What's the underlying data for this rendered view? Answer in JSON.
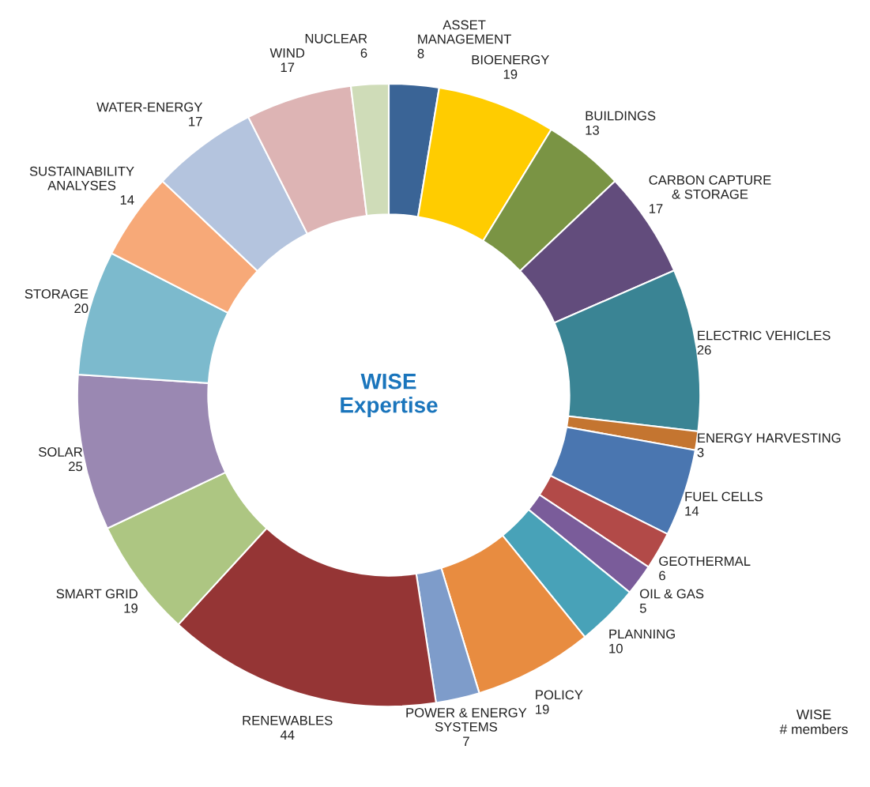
{
  "chart_data": {
    "type": "donut",
    "title": "WISE\nExpertise",
    "categories": [
      "ASSET\nMANAGEMENT",
      "BIOENERGY",
      "BUILDINGS",
      "CARBON CAPTURE\n& STORAGE",
      "ELECTRIC VEHICLES",
      "ENERGY HARVESTING",
      "FUEL CELLS",
      "GEOTHERMAL",
      "OIL & GAS",
      "PLANNING",
      "POLICY",
      "POWER & ENERGY\nSYSTEMS",
      "RENEWABLES",
      "SMART GRID",
      "SOLAR",
      "STORAGE",
      "SUSTAINABILITY\nANALYSES",
      "WATER-ENERGY",
      "WIND",
      "NUCLEAR"
    ],
    "values": [
      8,
      19,
      13,
      17,
      26,
      3,
      14,
      6,
      5,
      10,
      19,
      7,
      44,
      19,
      25,
      20,
      14,
      17,
      17,
      6
    ],
    "colors": [
      "#3a6496",
      "#ffcc00",
      "#7a9444",
      "#624c7c",
      "#3a8494",
      "#c47530",
      "#4a76b0",
      "#b24a48",
      "#7a5c9a",
      "#48a2b8",
      "#e88c40",
      "#7e9cca",
      "#953535",
      "#adc682",
      "#9a88b2",
      "#7cbacd",
      "#f7a978",
      "#b4c4de",
      "#ddb4b4",
      "#cfdcb8"
    ],
    "data_labels": true,
    "annotations": [
      "WISE\n# members"
    ]
  }
}
